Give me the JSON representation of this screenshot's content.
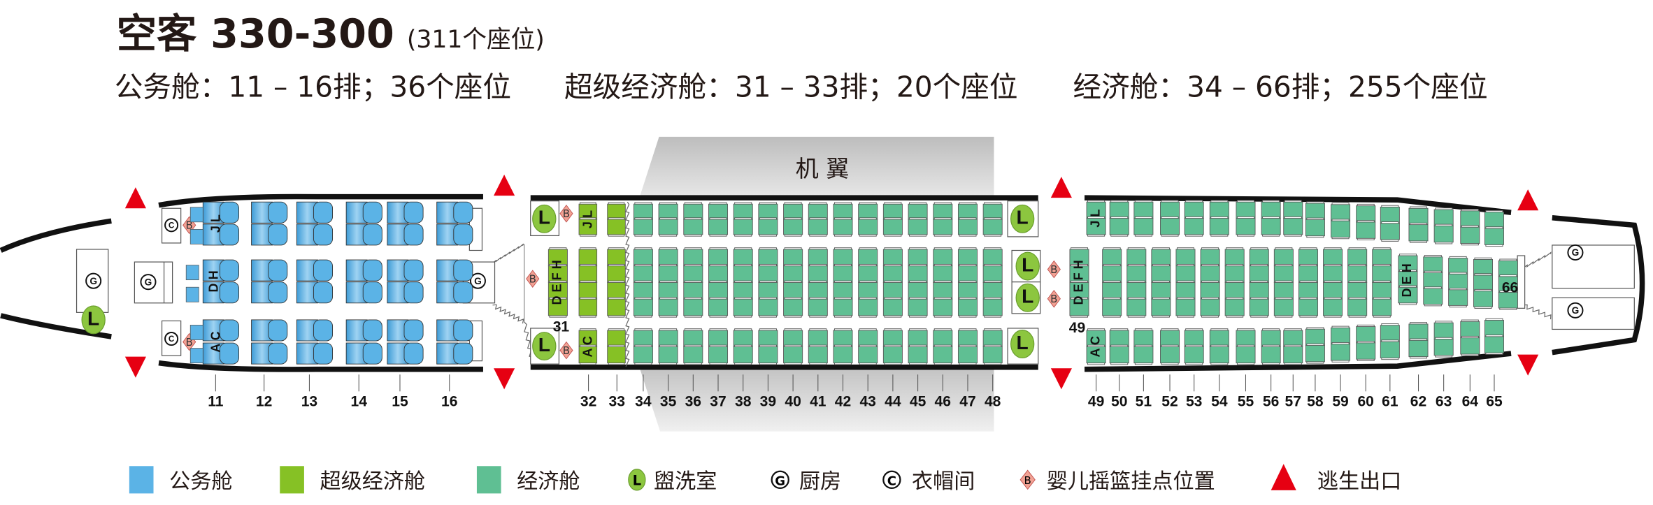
{
  "header": {
    "title": "空客 330-300",
    "seat_total": "(311个座位)"
  },
  "cabins": [
    {
      "name": "公务舱",
      "summary": "公务舱：11 – 16排；36个座位"
    },
    {
      "name": "超级经济舱",
      "summary": "超级经济舱：31 – 33排；20个座位"
    },
    {
      "name": "经济舱",
      "summary": "经济舱：34 – 66排；255个座位"
    }
  ],
  "wing_label": "机  翼",
  "rows": {
    "business": [
      "11",
      "12",
      "13",
      "14",
      "15",
      "16"
    ],
    "middle_section": [
      "32",
      "33",
      "34",
      "35",
      "36",
      "37",
      "38",
      "39",
      "40",
      "41",
      "42",
      "43",
      "44",
      "45",
      "46",
      "47",
      "48"
    ],
    "rear_section": [
      "49",
      "50",
      "51",
      "52",
      "53",
      "54",
      "55",
      "56",
      "57",
      "58",
      "59",
      "60",
      "61",
      "62",
      "63",
      "64",
      "65"
    ],
    "extra_labels": {
      "row31": "31",
      "row49": "49",
      "row66": "66"
    }
  },
  "seat_letters": {
    "business_top": "J L",
    "business_middle": "D H",
    "business_bottom": "A C",
    "section_top": "J L",
    "section_middle": "D E F H",
    "section_bottom": "A C",
    "rear_middle_narrow": "D E H"
  },
  "facility_symbols": {
    "lavatory": "L",
    "galley": "G",
    "closet": "C",
    "bassinet": "B"
  },
  "legend": [
    {
      "type": "business",
      "label": "公务舱"
    },
    {
      "type": "premium",
      "label": "超级经济舱"
    },
    {
      "type": "economy",
      "label": "经济舱"
    },
    {
      "type": "lavatory",
      "label": "盥洗室"
    },
    {
      "type": "galley",
      "label": "厨房"
    },
    {
      "type": "closet",
      "label": "衣帽间"
    },
    {
      "type": "bassinet",
      "label": "婴儿摇篮挂点位置"
    },
    {
      "type": "exit",
      "label": "逃生出口"
    }
  ],
  "colors": {
    "business": "#5bb3e6",
    "premium": "#86c125",
    "economy": "#5fbf93",
    "lavatory": "#8cc63f",
    "bassinet": "#f2a294",
    "exit": "#e60012",
    "fuselage": "#111111",
    "wing": "#d4d4d4"
  }
}
